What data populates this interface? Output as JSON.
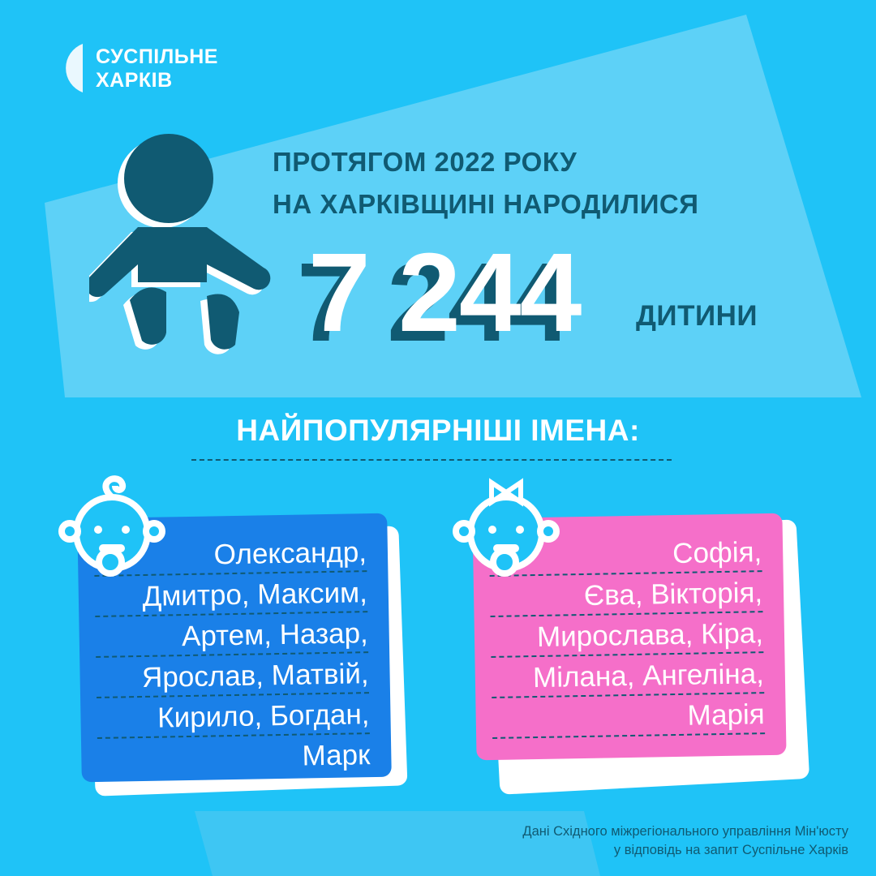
{
  "brand": {
    "line1": "СУСПІЛЬНЕ",
    "line2": "ХАРКІВ"
  },
  "headline": {
    "line1": "ПРОТЯГОМ 2022 РОКУ",
    "line2": "НА ХАРКІВЩИНІ НАРОДИЛИСЯ"
  },
  "births": {
    "value": "7 244",
    "unit": "ДИТИНИ"
  },
  "popular_title": "НАЙПОПУЛЯРНІШІ ІМЕНА:",
  "boys": {
    "icon": "baby-boy-icon",
    "lines": [
      "Олександр,",
      "Дмитро, Максим,",
      "Артем, Назар,",
      "Ярослав, Матвій,",
      "Кирило, Богдан,",
      "Марк"
    ]
  },
  "girls": {
    "icon": "baby-girl-icon",
    "lines": [
      "Софія,",
      "Єва, Вікторія,",
      "Мирослава, Кіра,",
      "Мілана, Ангеліна,",
      "Марія"
    ]
  },
  "source": {
    "line1": "Дані Східного міжрегіонального управління Мін'юсту",
    "line2": "у відповідь на запит Суспільне Харків"
  },
  "colors": {
    "background": "#1fc3f7",
    "text_dark": "#105a72",
    "boys_card": "#1a80e8",
    "girls_card": "#f56fc9"
  }
}
